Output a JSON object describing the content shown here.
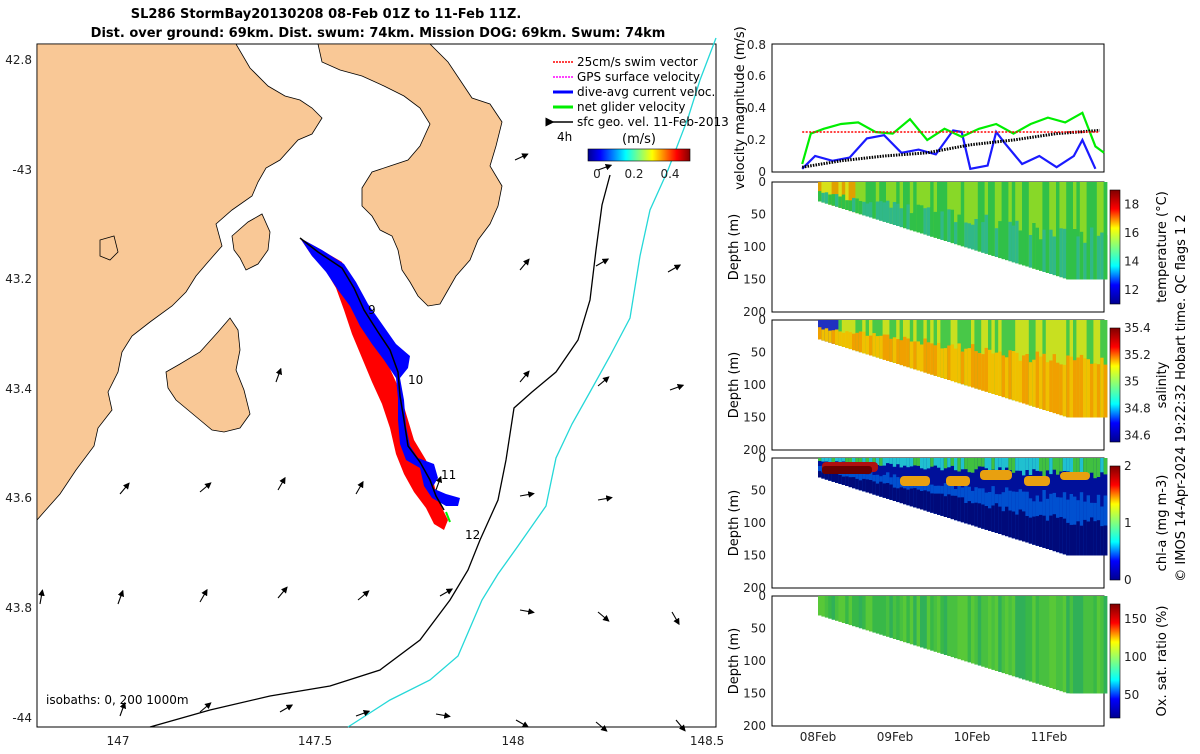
{
  "title": {
    "line1": "SL286 StormBay20130208 08-Feb 01Z to 11-Feb 11Z.",
    "line2": "Dist. over ground: 69km. Dist. swum: 74km. Mission DOG: 69km. Swum: 74km"
  },
  "map": {
    "lat_ticks": [
      "42.8",
      "-43",
      "43.2",
      "43.4",
      "43.6",
      "43.8",
      "-44"
    ],
    "lon_ticks": [
      "147",
      "147.5",
      "148",
      "148.5"
    ],
    "legend": {
      "items": [
        "25cm/s swim vector",
        "GPS surface velocity",
        "dive-avg current veloc.",
        "net glider velocity",
        "sfc geo. vel. 11-Feb-2013"
      ],
      "colors": [
        "#ff0000",
        "#ff00ff",
        "#0000ff",
        "#00ee00",
        "#000000"
      ]
    },
    "colorbar": {
      "unit": "(m/s)",
      "lag": "4h",
      "ticks": [
        "0",
        "0.2",
        "0.4"
      ]
    },
    "day_labels": [
      "9",
      "10",
      "11",
      "12"
    ],
    "isobaths": "isobaths: 0, 200  1000m"
  },
  "chart_data": [
    {
      "type": "line",
      "title": "",
      "ylabel": "velocity magnitude (m/s)",
      "ylim": [
        0,
        0.8
      ],
      "yticks": [
        "0",
        "0.2",
        "0.4",
        "0.6",
        "0.8"
      ],
      "x_range_days": [
        -0.3,
        3.55
      ],
      "series": [
        {
          "name": "swim vector",
          "color": "#ff0000",
          "x": [
            0.05,
            0.5,
            1.0,
            1.5,
            2.0,
            2.5,
            3.0,
            3.5
          ],
          "values": [
            0.25,
            0.25,
            0.25,
            0.25,
            0.25,
            0.25,
            0.25,
            0.25
          ]
        },
        {
          "name": "net glider velocity",
          "color": "#00ee00",
          "x": [
            0.05,
            0.15,
            0.3,
            0.5,
            0.7,
            0.9,
            1.1,
            1.3,
            1.5,
            1.7,
            1.9,
            2.1,
            2.3,
            2.5,
            2.7,
            2.9,
            3.1,
            3.3,
            3.45,
            3.55
          ],
          "values": [
            0.05,
            0.24,
            0.27,
            0.3,
            0.31,
            0.25,
            0.24,
            0.33,
            0.2,
            0.27,
            0.22,
            0.27,
            0.3,
            0.24,
            0.3,
            0.34,
            0.31,
            0.37,
            0.16,
            0.12
          ]
        },
        {
          "name": "dive-avg current veloc.",
          "color": "#1a1aff",
          "x": [
            0.05,
            0.2,
            0.4,
            0.6,
            0.8,
            1.0,
            1.2,
            1.4,
            1.6,
            1.8,
            1.9,
            2.0,
            2.2,
            2.3,
            2.4,
            2.6,
            2.8,
            3.0,
            3.2,
            3.3,
            3.45
          ],
          "values": [
            0.02,
            0.1,
            0.07,
            0.09,
            0.21,
            0.23,
            0.12,
            0.14,
            0.11,
            0.26,
            0.25,
            0.02,
            0.04,
            0.25,
            0.18,
            0.05,
            0.1,
            0.03,
            0.1,
            0.2,
            0.02
          ]
        },
        {
          "name": "sfc geo. vel.",
          "color": "#000000",
          "x": [
            0.05,
            0.5,
            1.0,
            1.5,
            2.0,
            2.5,
            3.0,
            3.5
          ],
          "values": [
            0.03,
            0.07,
            0.1,
            0.12,
            0.17,
            0.2,
            0.24,
            0.26
          ]
        }
      ]
    },
    {
      "type": "heatmap",
      "variable": "temperature",
      "ylabel": "Depth (m)",
      "cbar_label": "temperature (°C)",
      "clim": [
        11,
        19
      ],
      "cbar_ticks": [
        "18",
        "16",
        "14",
        "12"
      ],
      "yticks": [
        "0",
        "50",
        "100",
        "150",
        "200"
      ],
      "max_depth_start_m": 30,
      "max_depth_end_m": 150,
      "colors": [
        "#e0a000",
        "#d8e018",
        "#88d828",
        "#30c048",
        "#30b888"
      ]
    },
    {
      "type": "heatmap",
      "variable": "salinity",
      "ylabel": "Depth (m)",
      "cbar_label": "salinity",
      "clim": [
        34.55,
        35.4
      ],
      "cbar_ticks": [
        "35.4",
        "35.2",
        "35",
        "34.8",
        "34.6"
      ],
      "yticks": [
        "0",
        "50",
        "100",
        "150",
        "200"
      ],
      "max_depth_start_m": 30,
      "max_depth_end_m": 150,
      "colors": [
        "#2030c0",
        "#48c848",
        "#c8e020",
        "#f0c000",
        "#f0a000"
      ]
    },
    {
      "type": "heatmap",
      "variable": "chl-a",
      "ylabel": "Depth (m)",
      "cbar_label": "chl-a (mg m-3)",
      "clim": [
        0,
        2
      ],
      "cbar_ticks": [
        "2",
        "1",
        "0"
      ],
      "yticks": [
        "0",
        "50",
        "100",
        "150",
        "200"
      ],
      "max_depth_start_m": 30,
      "max_depth_end_m": 150,
      "colors": [
        "#00109a",
        "#0050d0",
        "#20c0d0",
        "#40c040",
        "#e8a010",
        "#b01010"
      ]
    },
    {
      "type": "heatmap",
      "variable": "oxygen saturation",
      "ylabel": "Depth (m)",
      "cbar_label": "Ox. sat. ratio (%)",
      "clim": [
        20,
        170
      ],
      "cbar_ticks": [
        "150",
        "100",
        "50"
      ],
      "yticks": [
        "0",
        "50",
        "100",
        "150",
        "200"
      ],
      "max_depth_start_m": 30,
      "max_depth_end_m": 150,
      "colors": [
        "#48c040",
        "#38b848",
        "#58c838",
        "#30b058"
      ]
    }
  ],
  "time_axis": [
    "08Feb",
    "09Feb",
    "10Feb",
    "11Feb"
  ],
  "side_text": "© IMOS 14-Apr-2024 19:22:32 Hobart time. QC flags 1  2"
}
